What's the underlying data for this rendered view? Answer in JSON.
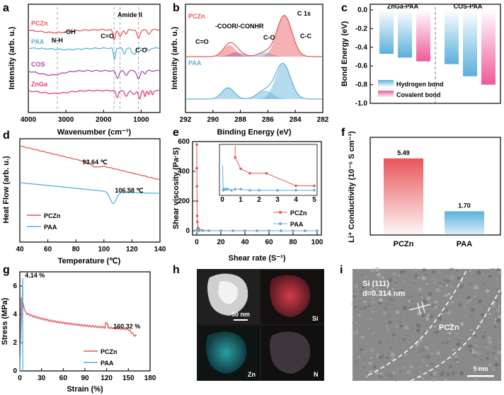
{
  "panel_letters": [
    "a",
    "b",
    "c",
    "d",
    "e",
    "f",
    "g",
    "h",
    "i"
  ],
  "chart_data": [
    {
      "id": "a",
      "type": "line",
      "title": "",
      "xlabel": "Wavenumber (cm⁻¹)",
      "ylabel": "Intensity (arb. u.)",
      "xlim": [
        4000,
        500
      ],
      "x_ticks": [
        "4000",
        "3000",
        "2000",
        "1000"
      ],
      "series": [
        {
          "name": "PCZn",
          "color": "#e8555a"
        },
        {
          "name": "PAA",
          "color": "#5ab0dc"
        },
        {
          "name": "COS",
          "color": "#a94ea5"
        },
        {
          "name": "ZnGa",
          "color": "#e23f73"
        }
      ],
      "annotations": [
        "N-H",
        "-OH",
        "C=O",
        "Amide II",
        "C-O"
      ],
      "ref_lines_x": [
        3230,
        1720,
        1560,
        1070
      ]
    },
    {
      "id": "b",
      "type": "area",
      "title": "C 1s",
      "xlabel": "Binding Energy (eV)",
      "ylabel": "Intensity (arb. u.)",
      "xlim": [
        292,
        282
      ],
      "x_ticks": [
        "292",
        "290",
        "288",
        "286",
        "284",
        "282"
      ],
      "series": [
        {
          "name": "PCZn",
          "color": "#e8555a"
        },
        {
          "name": "PAA",
          "color": "#5ab0dc"
        }
      ],
      "annotations": [
        "-COOR/-CONHR",
        "C=O",
        "C-O",
        "C-C"
      ]
    },
    {
      "id": "c",
      "type": "bar",
      "ylabel": "Bond Energy (eV)",
      "ylim": [
        -1.0,
        0.0
      ],
      "y_ticks": [
        "0.0",
        "-0.2",
        "-0.4",
        "-0.6",
        "-0.8",
        "-1.0"
      ],
      "groups": [
        "ZnGa-PAA",
        "COS-PAA"
      ],
      "values": [
        -0.47,
        -0.51,
        -0.55,
        -0.58,
        -0.71,
        -0.8
      ],
      "kinds": [
        "hydrogen",
        "hydrogen",
        "covalent",
        "hydrogen",
        "hydrogen",
        "covalent"
      ],
      "legend": [
        "Hydrogen bond",
        "Covalent  bond"
      ]
    },
    {
      "id": "d",
      "type": "line",
      "xlabel": "Temperature (℃)",
      "ylabel": "Heat Flow (arb. u.)",
      "xlim": [
        40,
        140
      ],
      "x_ticks": [
        "40",
        "60",
        "80",
        "100",
        "120",
        "140"
      ],
      "series": [
        {
          "name": "PCZn",
          "color": "#e8555a"
        },
        {
          "name": "PAA",
          "color": "#5ab0dc"
        }
      ],
      "annotations": [
        "93.64 ℃",
        "106.58 ℃"
      ]
    },
    {
      "id": "e",
      "type": "scatter",
      "xlabel": "Shear rate (S⁻¹)",
      "ylabel": "Shear viscosity (Pa·S)",
      "xlim": [
        0,
        100
      ],
      "ylim": [
        0,
        600
      ],
      "x_ticks": [
        "0",
        "20",
        "40",
        "60",
        "80",
        "100"
      ],
      "y_ticks": [
        "0",
        "200",
        "400",
        "600"
      ],
      "series": [
        {
          "name": "PCZn",
          "color": "#e8555a",
          "x": [
            0.02,
            0.05,
            0.1,
            0.2,
            0.3,
            0.5,
            1,
            2,
            5,
            10,
            20,
            30,
            40,
            50,
            60,
            70,
            80,
            90,
            100
          ],
          "y": [
            580,
            420,
            300,
            200,
            100,
            60,
            20,
            8,
            3,
            1,
            0.6,
            0.5,
            0.4,
            0.3,
            0.3,
            0.2,
            0.2,
            0.2,
            0.2
          ]
        },
        {
          "name": "PAA",
          "color": "#5ab0dc",
          "x": [
            0.02,
            0.05,
            0.1,
            0.3,
            0.5,
            1,
            2,
            5,
            10,
            20,
            30,
            40,
            50,
            60,
            70,
            80,
            90,
            100
          ],
          "y": [
            6,
            3,
            2,
            1,
            0.5,
            0.2,
            0.1,
            0.05,
            0.04,
            0.03,
            0.03,
            0.03,
            0.03,
            0.03,
            0.03,
            0.03,
            0.03,
            0.03
          ]
        }
      ],
      "inset": {
        "xlim": [
          0,
          5
        ],
        "ylim": [
          0,
          0.4
        ],
        "x_ticks": [
          "0",
          "1",
          "2",
          "3",
          "4",
          "5"
        ],
        "pczn_x": [
          0.7,
          1,
          1.5,
          2.4,
          4,
          5
        ],
        "pczn_y": [
          0.31,
          0.21,
          0.17,
          0.17,
          0.06,
          0.06
        ],
        "paa_x": [
          0.05,
          0.1,
          0.2,
          0.3,
          0.5,
          0.7,
          1,
          1.5,
          2,
          3,
          4,
          5
        ],
        "paa_y": [
          0.02,
          0.03,
          0.03,
          0.03,
          0.02,
          0.03,
          0.03,
          0.02,
          0.02,
          0.02,
          0.02,
          0.02
        ]
      }
    },
    {
      "id": "f",
      "type": "bar",
      "ylabel": "Li⁺ Conductivity (10⁻⁵ S cm⁻¹)",
      "categories": [
        "PCZn",
        "PAA"
      ],
      "values": [
        5.49,
        1.7
      ],
      "value_labels": [
        "5.49",
        "1.70"
      ],
      "ylim": [
        0,
        7
      ]
    },
    {
      "id": "g",
      "type": "line",
      "xlabel": "Strain (%)",
      "ylabel": "Stress (MPa)",
      "xlim": [
        0,
        180
      ],
      "ylim": [
        0,
        7
      ],
      "x_ticks": [
        "0",
        "30",
        "60",
        "90",
        "120",
        "150",
        "180"
      ],
      "y_ticks": [
        "0",
        "2",
        "4",
        "6"
      ],
      "series": [
        {
          "name": "PCZn",
          "color": "#e8555a"
        },
        {
          "name": "PAA",
          "color": "#5ab0dc"
        }
      ],
      "annotations": [
        "4.14 %",
        "160.32 %"
      ]
    }
  ],
  "micrographs": {
    "h_scale": "50 nm",
    "h_elements": [
      "Si",
      "Zn",
      "N"
    ],
    "i_plane": "Si (111)",
    "i_spacing": "d=0.314 nm",
    "i_label": "PCZn",
    "i_scale": "5 nm"
  },
  "colors": {
    "pczn": "#e8555a",
    "paa": "#5ab0dc",
    "cos": "#a94ea5",
    "znga": "#e23f73"
  }
}
